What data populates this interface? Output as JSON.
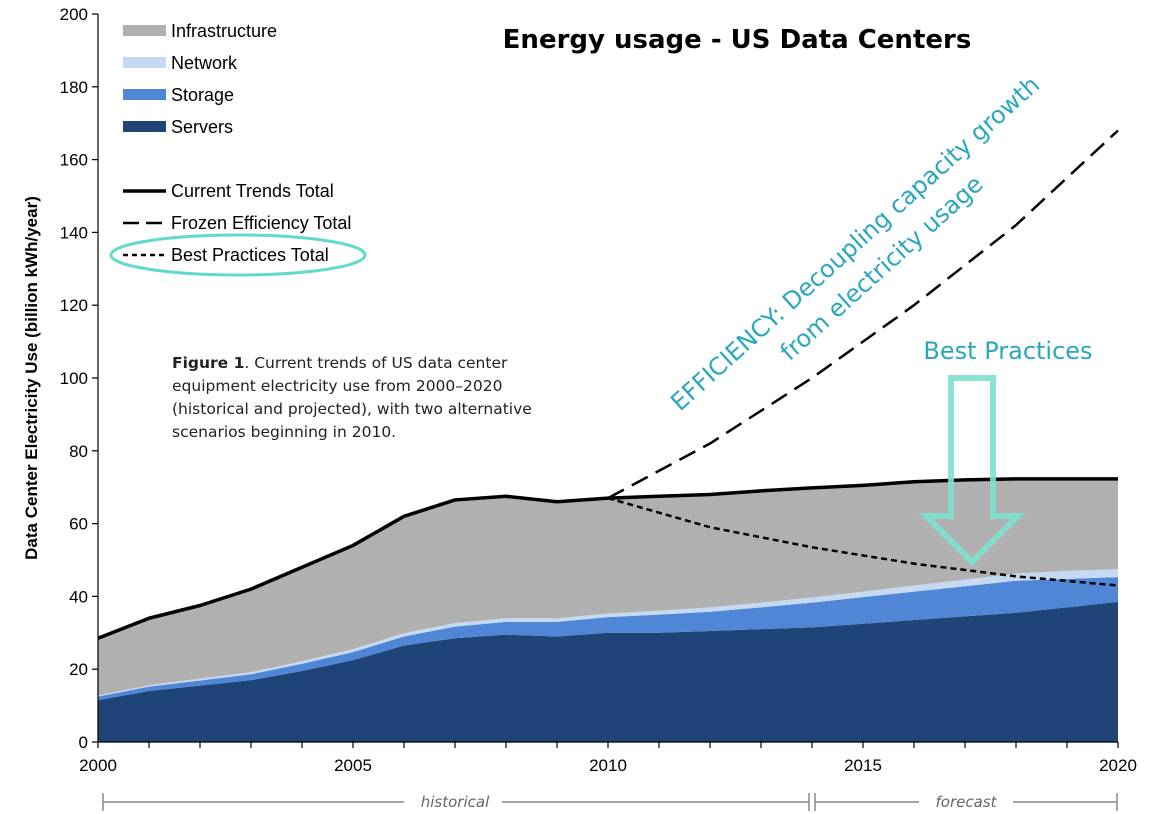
{
  "chart_data": {
    "type": "area",
    "title": "Energy usage - US Data Centers",
    "ylabel": "Data Center Electricity Use (billion kWh/year)",
    "xlabel": "",
    "xlim": [
      2000,
      2020
    ],
    "ylim": [
      0,
      200
    ],
    "x_ticks": [
      "2000",
      "2005",
      "2010",
      "2015",
      "2020"
    ],
    "y_ticks": [
      "0",
      "20",
      "40",
      "60",
      "80",
      "100",
      "120",
      "140",
      "160",
      "180",
      "200"
    ],
    "x": [
      2000,
      2001,
      2002,
      2003,
      2004,
      2005,
      2006,
      2007,
      2008,
      2009,
      2010,
      2011,
      2012,
      2013,
      2014,
      2015,
      2016,
      2017,
      2018,
      2019,
      2020
    ],
    "stacked_series": [
      {
        "name": "Servers",
        "color": "#1f4578",
        "values": [
          11.5,
          14,
          15.5,
          17,
          19.5,
          22.5,
          26.5,
          28.5,
          29.5,
          29,
          30,
          30,
          30.5,
          31,
          31.5,
          32.5,
          33.5,
          34.5,
          35.5,
          37,
          38.5
        ]
      },
      {
        "name": "Storage",
        "color": "#4f86d6",
        "values": [
          1,
          1.2,
          1.4,
          1.6,
          2,
          2.2,
          2.5,
          3.2,
          3.5,
          4,
          4.3,
          5,
          5.3,
          6,
          6.8,
          7.3,
          7.8,
          8.3,
          8.8,
          7.8,
          6.8
        ]
      },
      {
        "name": "Network",
        "color": "#c5d9f1",
        "values": [
          0.3,
          0.4,
          0.5,
          0.6,
          0.7,
          0.8,
          0.9,
          1,
          1,
          1,
          1,
          1.1,
          1.2,
          1.3,
          1.4,
          1.5,
          1.7,
          1.8,
          2,
          2.2,
          2.2
        ]
      },
      {
        "name": "Infrastructure",
        "color": "#b0b0b0",
        "values": [
          15.7,
          18.4,
          20.1,
          23,
          25.8,
          28.5,
          32.1,
          33.8,
          33.7,
          32,
          31.7,
          31.4,
          30.8,
          30.7,
          30.3,
          29.7,
          28.5,
          27.4,
          26.2,
          25.4,
          24.9
        ]
      }
    ],
    "line_series": [
      {
        "name": "Current Trends Total",
        "style": "solid",
        "x": [
          2000,
          2001,
          2002,
          2003,
          2004,
          2005,
          2006,
          2007,
          2008,
          2009,
          2010,
          2011,
          2012,
          2013,
          2014,
          2015,
          2016,
          2017,
          2018,
          2019,
          2020
        ],
        "values": [
          28.5,
          34,
          37.5,
          42,
          48,
          54,
          62,
          66.5,
          67.5,
          66,
          67,
          67.5,
          68,
          69,
          69.8,
          70.5,
          71.5,
          72,
          72.3,
          72.3,
          72.3
        ]
      },
      {
        "name": "Frozen Efficiency Total",
        "style": "long-dash",
        "x": [
          2010,
          2012,
          2014,
          2016,
          2018,
          2020
        ],
        "values": [
          67,
          82,
          100,
          120,
          142,
          168
        ]
      },
      {
        "name": "Best Practices Total",
        "style": "short-dash",
        "x": [
          2010,
          2012,
          2014,
          2016,
          2018,
          2020
        ],
        "values": [
          67,
          59,
          53.5,
          49,
          45.5,
          43
        ]
      }
    ],
    "legend": [
      "Infrastructure",
      "Network",
      "Storage",
      "Servers",
      "Current Trends Total",
      "Frozen Efficiency Total",
      "Best Practices Total"
    ],
    "legend_placement": "top-left",
    "grid": false
  },
  "caption": {
    "bold": "Figure 1",
    "lines": [
      ". Current trends of US data center",
      "equipment electricity use from 2000–2020",
      "(historical and projected), with two alternative",
      "scenarios beginning in 2010."
    ]
  },
  "annotation": {
    "line1": "EFFICIENCY: Decoupling capacity growth",
    "line2": "from electricity usage",
    "best_practices": "Best Practices"
  },
  "periods": {
    "historical": "historical",
    "forecast": "forecast"
  },
  "colors": {
    "accent": "#2aa7be",
    "highlight": "#5fdacb"
  }
}
